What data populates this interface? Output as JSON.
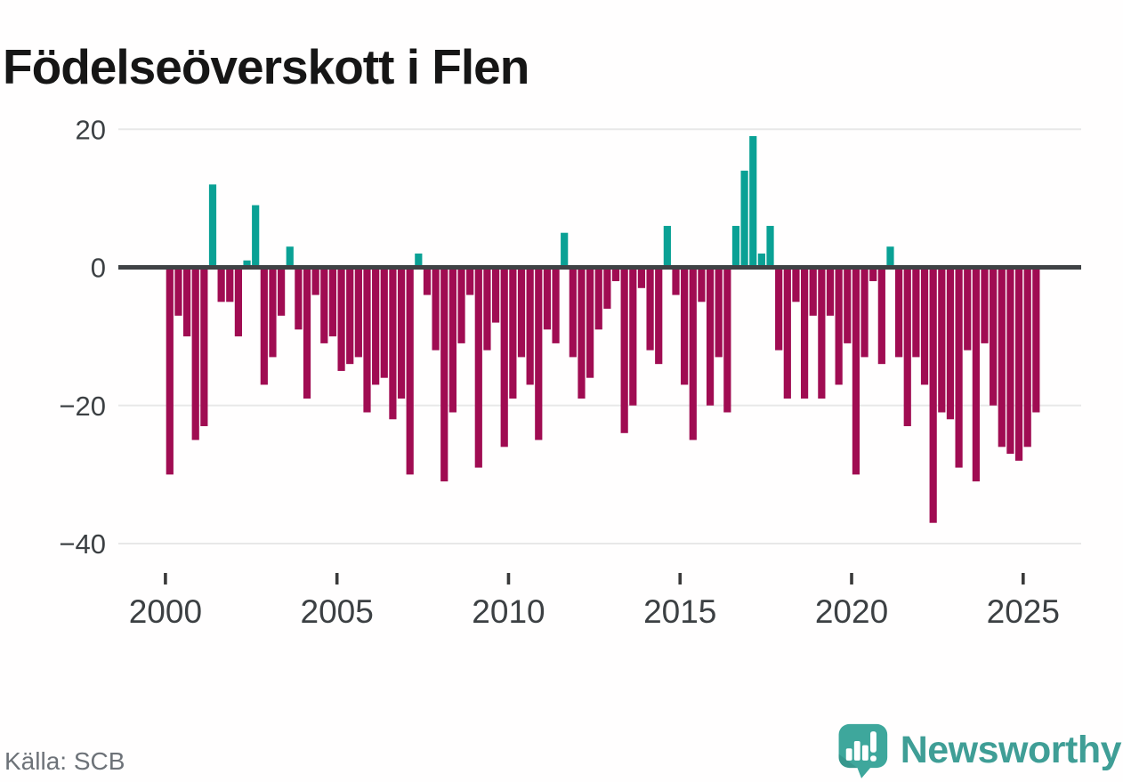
{
  "title": "Födelseöverskott i Flen",
  "source": "Källa: SCB",
  "branding": {
    "wordmark": "Newsworthy",
    "icon": "newsworthy-bars-exclamation-icon"
  },
  "colors": {
    "positive_bar": "#0aa195",
    "negative_bar": "#a00c52",
    "zero_line": "#3f4245",
    "gridline": "#e8e8e8",
    "axis_text": "#3c4043",
    "tick_mark": "#3a3a3a",
    "title_text": "#161616",
    "source_text": "#6d7278",
    "brand_teal": "#3f9e96",
    "logo_bubble": "#3ea79c",
    "logo_bubble_shade": "#2f8b82"
  },
  "chart_data": {
    "type": "bar",
    "title": "Födelseöverskott i Flen",
    "xlabel": "",
    "ylabel": "",
    "frequency": "quarterly",
    "start": "2000Q1",
    "end": "2025Q2",
    "ylim": [
      -40,
      22
    ],
    "grid": "horizontal",
    "legend_position": "none",
    "y_ticks": [
      20,
      0,
      -20,
      -40
    ],
    "y_tick_labels": [
      "20",
      "0",
      "−20",
      "−40"
    ],
    "x_tick_years": [
      2000,
      2005,
      2010,
      2015,
      2020,
      2025
    ],
    "x_tick_labels": [
      "2000",
      "2005",
      "2010",
      "2015",
      "2020",
      "2025"
    ],
    "series_name": "Födelseöverskott",
    "values": [
      -30,
      -7,
      -10,
      -25,
      -23,
      12,
      -5,
      -5,
      -10,
      1,
      9,
      -17,
      -13,
      -7,
      3,
      -9,
      -19,
      -4,
      -11,
      -10,
      -15,
      -14,
      -13,
      -21,
      -17,
      -16,
      -22,
      -19,
      -30,
      2,
      -4,
      -12,
      -31,
      -21,
      -11,
      -4,
      -29,
      -12,
      -8,
      -26,
      -19,
      -13,
      -17,
      -25,
      -9,
      -11,
      5,
      -13,
      -19,
      -16,
      -9,
      -6,
      -2,
      -24,
      -20,
      -3,
      -12,
      -14,
      6,
      -4,
      -17,
      -25,
      -5,
      -20,
      -13,
      -21,
      6,
      14,
      19,
      2,
      6,
      -12,
      -19,
      -5,
      -19,
      -7,
      -19,
      -7,
      -17,
      -11,
      -30,
      -13,
      -2,
      -14,
      3,
      -13,
      -23,
      -13,
      -17,
      -37,
      -21,
      -22,
      -29,
      -12,
      -31,
      -11,
      -20,
      -26,
      -27,
      -28,
      -26,
      -21
    ]
  }
}
